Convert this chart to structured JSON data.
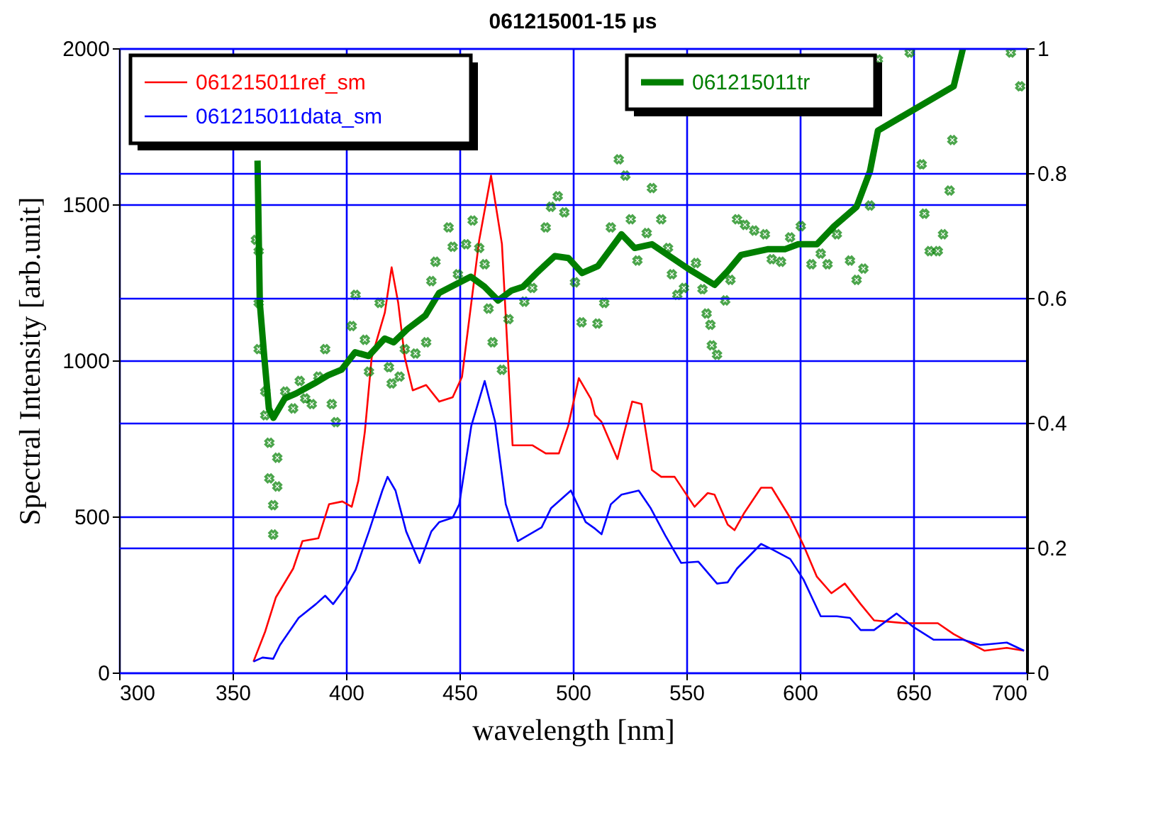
{
  "chart_data": {
    "type": "line",
    "title": "061215001-15 μs",
    "xlabel": "wavelength [nm]",
    "ylabel": "Spectral Intensity [arb.unit]",
    "xlim": [
      300,
      700
    ],
    "xticks": [
      300,
      350,
      400,
      450,
      500,
      550,
      600,
      650,
      700
    ],
    "ylim": [
      0,
      2000
    ],
    "yticks": [
      0,
      500,
      1000,
      1500,
      2000
    ],
    "y2lim": [
      0,
      1
    ],
    "y2ticks": [
      0,
      0.2,
      0.4,
      0.6,
      0.8,
      1
    ],
    "grid": true,
    "legend": "top",
    "line_style": "solid",
    "series": [
      {
        "name": "061215011ref_sm",
        "color": "#ff0000",
        "type": "line",
        "x": [
          359.2,
          364.4,
          369.1,
          376.7,
          380.8,
          387.8,
          392.5,
          398.4,
          402.5,
          405.4,
          408.3,
          411.3,
          417.1,
          420.1,
          423,
          425.9,
          429.4,
          435.3,
          441.1,
          447,
          451.1,
          458.7,
          463.9,
          468.7,
          473.4,
          482.1,
          488,
          493.8,
          497.9,
          502.6,
          507.9,
          509.7,
          512.6,
          519.6,
          526.1,
          530.2,
          534.8,
          538.9,
          544.8,
          553.6,
          559.4,
          562.4,
          568.2,
          571.2,
          575.3,
          582.9,
          587.6,
          595.7,
          601.6,
          607.5,
          613.9,
          619.8,
          626.8,
          632.7,
          646.1,
          660.8,
          667.8,
          681.3,
          691.2,
          698.8
        ],
        "values": [
          35,
          132,
          241,
          333,
          421,
          430,
          539,
          548,
          531,
          614,
          772,
          1009,
          1153,
          1298,
          1184,
          1009,
          904,
          921,
          868,
          882,
          947,
          1386,
          1592,
          1373,
          728,
          728,
          702,
          702,
          790,
          943,
          877,
          825,
          803,
          684,
          868,
          860,
          649,
          627,
          627,
          531,
          575,
          570,
          474,
          456,
          509,
          592,
          592,
          496,
          408,
          307,
          254,
          285,
          219,
          167,
          158,
          158,
          123,
          70,
          79,
          70
        ]
      },
      {
        "name": "061215011data_sm",
        "color": "#0000ff",
        "type": "line",
        "x": [
          359.2,
          363.2,
          367.9,
          370.9,
          379.1,
          386.7,
          390.8,
          394.3,
          400.1,
          404.2,
          410.1,
          416,
          418.3,
          421.8,
          426.5,
          432.4,
          437.6,
          441.1,
          447,
          449.9,
          455.2,
          461.1,
          465.7,
          470.4,
          475.7,
          486.2,
          490.3,
          499.1,
          505.6,
          509.7,
          512.6,
          516.7,
          521.4,
          529,
          534.3,
          540.7,
          547.7,
          555.3,
          563.5,
          568.2,
          572.3,
          582.9,
          587.6,
          595.7,
          601.6,
          609.2,
          616.3,
          622.1,
          626.8,
          632.7,
          642.6,
          650.2,
          659,
          671.9,
          679.5,
          691.2,
          698.8
        ],
        "values": [
          35,
          48,
          44,
          88,
          175,
          219,
          246,
          219,
          276,
          329,
          452,
          583,
          627,
          583,
          452,
          351,
          452,
          482,
          496,
          539,
          790,
          934,
          803,
          539,
          421,
          465,
          526,
          583,
          482,
          461,
          443,
          539,
          570,
          583,
          526,
          439,
          351,
          355,
          285,
          289,
          333,
          412,
          395,
          364,
          298,
          180,
          180,
          175,
          136,
          136,
          189,
          145,
          105,
          105,
          88,
          96,
          70
        ]
      },
      {
        "name": "061215011tr",
        "color": "#007f00",
        "type": "line",
        "axis": "y2",
        "x": [
          361,
          362,
          364,
          366,
          368,
          373,
          378,
          386,
          392,
          398,
          404,
          410,
          417,
          421,
          427,
          435,
          441,
          449,
          455,
          461,
          467,
          473,
          478,
          484,
          492,
          498,
          504,
          511,
          521.4,
          527.2,
          534.8,
          550.7,
          562.4,
          568.2,
          574.1,
          585.8,
          593.4,
          599.3,
          607.5,
          615.1,
          625,
          630.9,
          634.4,
          667.8,
          671.9
        ],
        "values": [
          0.82,
          0.592,
          0.504,
          0.423,
          0.408,
          0.439,
          0.447,
          0.463,
          0.476,
          0.485,
          0.513,
          0.507,
          0.535,
          0.529,
          0.55,
          0.572,
          0.608,
          0.623,
          0.634,
          0.618,
          0.596,
          0.612,
          0.618,
          0.64,
          0.667,
          0.664,
          0.64,
          0.651,
          0.702,
          0.68,
          0.686,
          0.647,
          0.621,
          0.643,
          0.669,
          0.678,
          0.678,
          0.686,
          0.686,
          0.715,
          0.746,
          0.803,
          0.868,
          0.939,
          1.0
        ]
      },
      {
        "color": "#007f00",
        "type": "scatter",
        "axis": "y2",
        "marker": "cross",
        "x": [
          360.3,
          361.5,
          361.5,
          361.5,
          364.4,
          364.4,
          366.2,
          366.2,
          369.7,
          369.7,
          367.9,
          367.9,
          373.2,
          376.7,
          379.6,
          382,
          384.9,
          387.8,
          390.8,
          393.7,
          395.5,
          402.5,
          404.2,
          408.3,
          410.1,
          414.8,
          418.9,
          420.1,
          423.6,
          425.9,
          430.6,
          435.3,
          437.6,
          439.4,
          445.2,
          447,
          449.3,
          452.9,
          455.8,
          458.7,
          461.1,
          462.8,
          464.6,
          468.7,
          471.6,
          478.6,
          482.1,
          488,
          490.3,
          493.3,
          496.2,
          500.9,
          503.8,
          510.8,
          513.8,
          516.7,
          520.2,
          523.1,
          525.5,
          528.4,
          532.5,
          534.8,
          538.9,
          541.9,
          543.6,
          546,
          548.9,
          554.2,
          557.1,
          558.9,
          560.6,
          561.2,
          563.5,
          567.1,
          569.4,
          572.3,
          575.8,
          579.9,
          584.6,
          587.6,
          591.7,
          595.7,
          600.4,
          605.1,
          609.2,
          612.2,
          616.3,
          622.1,
          625,
          628,
          630.9,
          634.4,
          648.4,
          653.7,
          654.9,
          657.2,
          660.8,
          663.1,
          666,
          667.2,
          693,
          697.1
        ],
        "values": [
          0.693,
          0.675,
          0.592,
          0.518,
          0.45,
          0.412,
          0.368,
          0.311,
          0.344,
          0.298,
          0.268,
          0.221,
          0.45,
          0.423,
          0.467,
          0.439,
          0.43,
          0.474,
          0.518,
          0.43,
          0.401,
          0.555,
          0.605,
          0.533,
          0.482,
          0.592,
          0.489,
          0.463,
          0.474,
          0.518,
          0.511,
          0.529,
          0.627,
          0.658,
          0.713,
          0.682,
          0.638,
          0.686,
          0.724,
          0.68,
          0.654,
          0.583,
          0.529,
          0.485,
          0.566,
          0.594,
          0.616,
          0.713,
          0.746,
          0.763,
          0.737,
          0.625,
          0.561,
          0.559,
          0.592,
          0.713,
          0.822,
          0.796,
          0.726,
          0.66,
          0.704,
          0.776,
          0.726,
          0.68,
          0.638,
          0.605,
          0.616,
          0.656,
          0.614,
          0.575,
          0.557,
          0.524,
          0.509,
          0.596,
          0.629,
          0.726,
          0.717,
          0.708,
          0.702,
          0.662,
          0.658,
          0.697,
          0.715,
          0.654,
          0.671,
          0.654,
          0.702,
          0.66,
          0.629,
          0.647,
          0.748,
          0.982,
          0.993,
          0.814,
          0.735,
          0.675,
          0.675,
          0.702,
          0.772,
          0.853,
          0.993,
          0.939
        ]
      }
    ]
  }
}
